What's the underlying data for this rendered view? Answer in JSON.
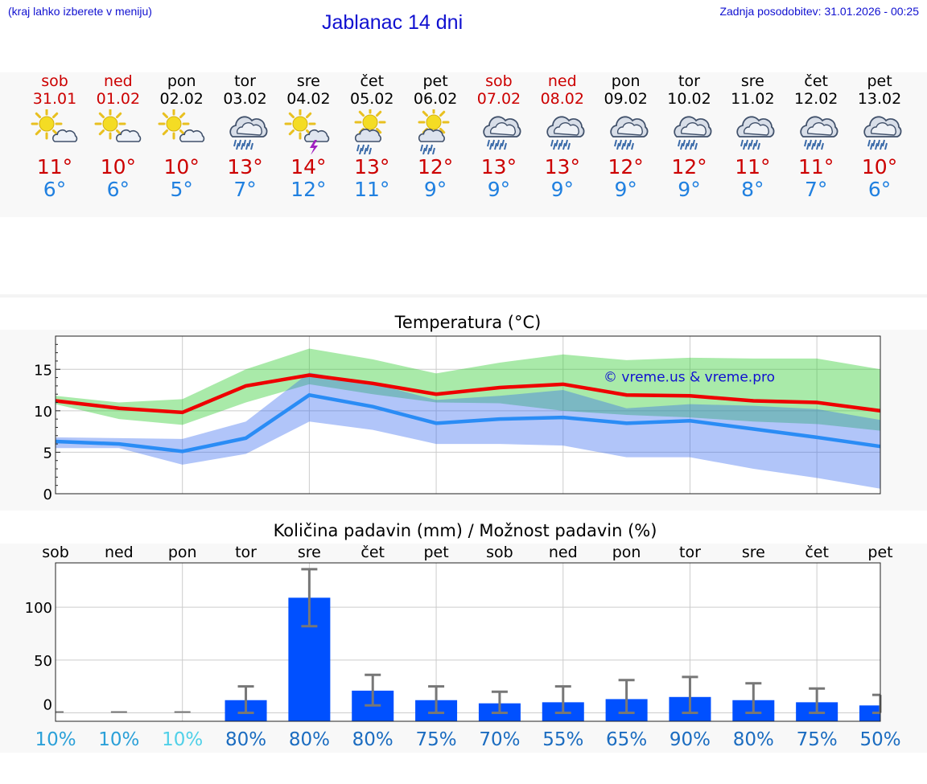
{
  "header": {
    "note": "(kraj lahko izberete v meniju)",
    "title": "Jablanac 14 dni",
    "updated": "Zadnja posodobitev: 31.01.2026 - 00:25"
  },
  "colors": {
    "link_blue": "#1010d0",
    "tmax_red": "#cc0000",
    "tmin_blue": "#2080e0",
    "max_line": "#ee0000",
    "min_line": "#2a8cf5",
    "max_band": "#33cc33",
    "min_band": "#3366ee",
    "precip_bar": "#0050ff",
    "error_bar": "#777777"
  },
  "forecast": {
    "days": [
      {
        "name": "sob",
        "date": "31.01",
        "icon": "sun-cloud-icon",
        "tmax": "11°",
        "tmin": "6°",
        "weekend": true
      },
      {
        "name": "ned",
        "date": "01.02",
        "icon": "sun-cloud-icon",
        "tmax": "10°",
        "tmin": "6°",
        "weekend": true
      },
      {
        "name": "pon",
        "date": "02.02",
        "icon": "sun-cloud-icon",
        "tmax": "10°",
        "tmin": "5°",
        "weekend": false
      },
      {
        "name": "tor",
        "date": "03.02",
        "icon": "rain-cloud-icon",
        "tmax": "13°",
        "tmin": "7°",
        "weekend": false
      },
      {
        "name": "sre",
        "date": "04.02",
        "icon": "sun-thunder-icon",
        "tmax": "14°",
        "tmin": "12°",
        "weekend": false
      },
      {
        "name": "čet",
        "date": "05.02",
        "icon": "sun-rain-icon",
        "tmax": "13°",
        "tmin": "11°",
        "weekend": false
      },
      {
        "name": "pet",
        "date": "06.02",
        "icon": "sun-rain-icon",
        "tmax": "12°",
        "tmin": "9°",
        "weekend": false
      },
      {
        "name": "sob",
        "date": "07.02",
        "icon": "rain-cloud-icon",
        "tmax": "13°",
        "tmin": "9°",
        "weekend": true
      },
      {
        "name": "ned",
        "date": "08.02",
        "icon": "rain-cloud-icon",
        "tmax": "13°",
        "tmin": "9°",
        "weekend": true
      },
      {
        "name": "pon",
        "date": "09.02",
        "icon": "rain-cloud-icon",
        "tmax": "12°",
        "tmin": "9°",
        "weekend": false
      },
      {
        "name": "tor",
        "date": "10.02",
        "icon": "rain-cloud-icon",
        "tmax": "12°",
        "tmin": "9°",
        "weekend": false
      },
      {
        "name": "sre",
        "date": "11.02",
        "icon": "rain-cloud-icon",
        "tmax": "11°",
        "tmin": "8°",
        "weekend": false
      },
      {
        "name": "čet",
        "date": "12.02",
        "icon": "rain-cloud-icon",
        "tmax": "11°",
        "tmin": "7°",
        "weekend": false
      },
      {
        "name": "pet",
        "date": "13.02",
        "icon": "rain-cloud-icon",
        "tmax": "10°",
        "tmin": "6°",
        "weekend": false
      }
    ]
  },
  "chart_data": [
    {
      "type": "line",
      "title": "Temperatura (°C)",
      "watermark": "© vreme.us & vreme.pro",
      "ylim": [
        0,
        19
      ],
      "yticks": [
        0,
        5,
        10,
        15
      ],
      "x": [
        0,
        1,
        2,
        3,
        4,
        5,
        6,
        7,
        8,
        9,
        10,
        11,
        12,
        13
      ],
      "series": [
        {
          "name": "max",
          "values": [
            11.2,
            10.3,
            9.8,
            13.0,
            14.3,
            13.3,
            12.0,
            12.8,
            13.2,
            11.9,
            11.8,
            11.2,
            11.0,
            10.0
          ]
        },
        {
          "name": "min",
          "values": [
            6.3,
            6.0,
            5.1,
            6.7,
            11.9,
            10.5,
            8.5,
            9.0,
            9.2,
            8.5,
            8.8,
            7.8,
            6.8,
            5.7
          ]
        }
      ],
      "bands": [
        {
          "name": "max_range",
          "low": [
            10.8,
            9.0,
            8.3,
            11.0,
            13.2,
            12.0,
            11.0,
            10.9,
            10.0,
            9.5,
            9.2,
            8.7,
            8.4,
            7.6
          ],
          "high": [
            11.8,
            11.0,
            11.4,
            15.0,
            17.5,
            16.2,
            14.5,
            15.8,
            16.8,
            16.1,
            16.4,
            16.3,
            16.3,
            15.0
          ]
        },
        {
          "name": "min_range",
          "low": [
            5.5,
            5.5,
            3.5,
            4.8,
            8.7,
            7.7,
            6.0,
            6.0,
            5.8,
            4.4,
            4.4,
            3.0,
            1.9,
            0.6
          ],
          "high": [
            6.8,
            6.7,
            6.6,
            8.7,
            14.6,
            13.3,
            11.3,
            11.8,
            12.5,
            10.3,
            10.8,
            10.6,
            10.2,
            8.9
          ]
        }
      ]
    },
    {
      "type": "bar",
      "title": "Količina padavin (mm) / Možnost padavin (%)",
      "categories": [
        "sob",
        "ned",
        "pon",
        "tor",
        "sre",
        "čet",
        "pet",
        "sob",
        "ned",
        "pon",
        "tor",
        "sre",
        "čet",
        "pet"
      ],
      "ylim": [
        -8,
        142
      ],
      "yticks": [
        0,
        50,
        100
      ],
      "values": [
        0,
        0,
        0,
        12,
        109,
        21,
        12,
        9,
        10,
        13,
        15,
        12,
        10,
        7
      ],
      "err_low": [
        0,
        0,
        0,
        0,
        82,
        7,
        0,
        0,
        0,
        0,
        0,
        0,
        0,
        0
      ],
      "err_high": [
        0,
        0,
        0,
        25,
        136,
        36,
        25,
        20,
        25,
        31,
        34,
        28,
        23,
        17
      ],
      "chance": [
        "10%",
        "10%",
        "10%",
        "80%",
        "80%",
        "80%",
        "75%",
        "70%",
        "55%",
        "65%",
        "90%",
        "80%",
        "75%",
        "50%"
      ],
      "chance_colors": [
        "#2ba0d8",
        "#2ba0d8",
        "#50d0e8",
        "#1b6cc0",
        "#1b6cc0",
        "#1b6cc0",
        "#1b6cc0",
        "#1b6cc0",
        "#1b6cc0",
        "#1b6cc0",
        "#1b6cc0",
        "#1b6cc0",
        "#1b6cc0",
        "#1b6cc0"
      ]
    }
  ]
}
